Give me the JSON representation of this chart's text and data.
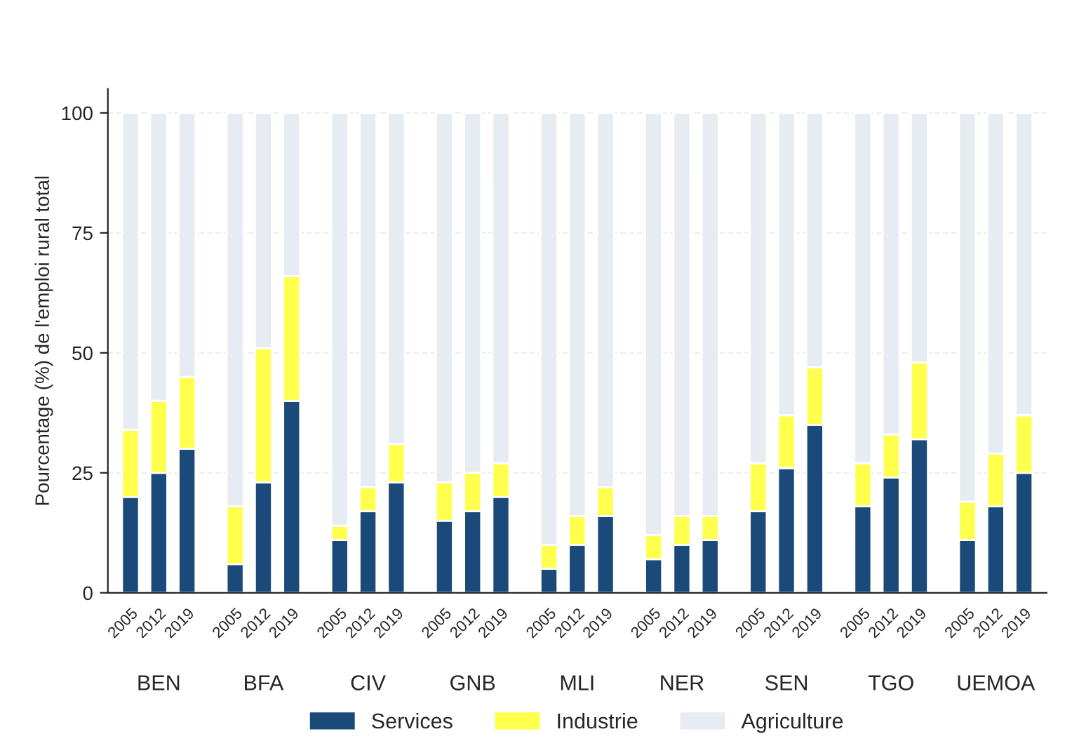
{
  "chart_data": {
    "type": "bar",
    "stacked": true,
    "ylabel": "Pourcentage (%) de l'emploi rural total",
    "categories": [
      "2005",
      "2012",
      "2019",
      "2005",
      "2012",
      "2019",
      "2005",
      "2012",
      "2019",
      "2005",
      "2012",
      "2019",
      "2005",
      "2012",
      "2019",
      "2005",
      "2012",
      "2019",
      "2005",
      "2012",
      "2019",
      "2005",
      "2012",
      "2019",
      "2005",
      "2012",
      "2019"
    ],
    "annotations": [
      "BEN",
      "BFA",
      "CIV",
      "GNB",
      "MLI",
      "NER",
      "SEN",
      "TGO",
      "UEMOA"
    ],
    "series": [
      {
        "name": "Services",
        "color": "#1a4a7a",
        "values": [
          20,
          25,
          30,
          6,
          23,
          40,
          11,
          17,
          23,
          15,
          17,
          20,
          5,
          10,
          16,
          7,
          10,
          11,
          17,
          26,
          35,
          18,
          24,
          32,
          11,
          18,
          25
        ]
      },
      {
        "name": "Industrie",
        "color": "#ffff4d",
        "values": [
          14,
          15,
          15,
          12,
          28,
          26,
          3,
          5,
          8,
          8,
          8,
          7,
          5,
          6,
          6,
          5,
          6,
          5,
          10,
          11,
          12,
          9,
          9,
          16,
          8,
          11,
          12
        ]
      },
      {
        "name": "Agriculture",
        "color": "#e6ecf2",
        "values": [
          66,
          60,
          55,
          82,
          49,
          34,
          86,
          78,
          69,
          77,
          75,
          73,
          90,
          84,
          78,
          88,
          84,
          84,
          73,
          63,
          53,
          73,
          67,
          52,
          81,
          71,
          63
        ]
      }
    ],
    "ylim": [
      0,
      105
    ],
    "yticks": [
      0,
      25,
      50,
      75,
      100
    ],
    "grid": "y",
    "legend": "bottom"
  }
}
